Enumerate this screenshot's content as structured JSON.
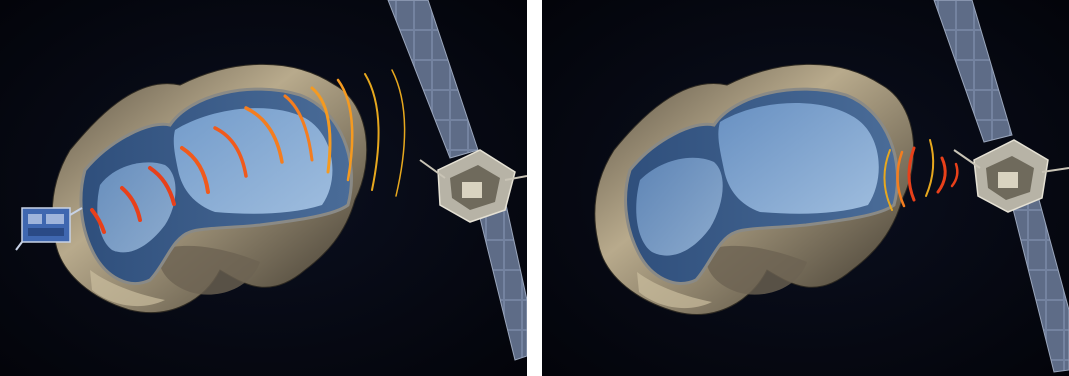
{
  "figure": {
    "panels": [
      {
        "id": "left",
        "scene": "radar-sounding-lander-to-orbiter",
        "signal_arc_colors": [
          "#e8401a",
          "#f05a1c",
          "#f47d1f",
          "#f59a20",
          "#e7a81e"
        ]
      },
      {
        "id": "right",
        "scene": "radar-reflection-at-orbiter",
        "signal_arc_colors": [
          "#e8401a",
          "#f47d1f",
          "#e7a81e"
        ]
      }
    ],
    "colors": {
      "space": "#05070d",
      "rock": "#9b8d74",
      "interior_outer": "#3e6292",
      "interior_inner": "#7fa8d6",
      "solar_panel": "#6d7b92"
    }
  }
}
